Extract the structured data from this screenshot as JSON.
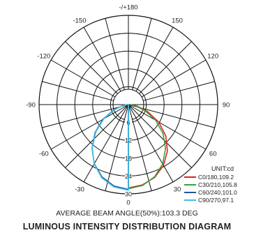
{
  "chart_data": {
    "type": "polar",
    "title": "LUMINOUS INTENSITY DISTRIBUTION DIAGRAM",
    "annotation": "AVERAGE BEAM ANGLE(50%):103.3 DEG",
    "unit_label": "UNIT:cd",
    "angle_labels": [
      {
        "angle": 180,
        "text": "-/+180"
      },
      {
        "angle": -150,
        "text": "-150"
      },
      {
        "angle": 150,
        "text": "150"
      },
      {
        "angle": -120,
        "text": "-120"
      },
      {
        "angle": 120,
        "text": "120"
      },
      {
        "angle": -90,
        "text": "-90"
      },
      {
        "angle": 90,
        "text": "90"
      },
      {
        "angle": -60,
        "text": "-60"
      },
      {
        "angle": 60,
        "text": "60"
      },
      {
        "angle": -30,
        "text": "-30"
      },
      {
        "angle": 30,
        "text": "30"
      },
      {
        "angle": 0,
        "text": "0"
      }
    ],
    "radial_ticks": [
      6,
      12,
      18,
      24,
      30
    ],
    "radial_max": 30,
    "spoke_step_deg": 15,
    "series": [
      {
        "name": "C0/180,109.2",
        "color": "#e02020",
        "points": [
          [
            0,
            28.0
          ],
          [
            10,
            27.4
          ],
          [
            20,
            26.0
          ],
          [
            30,
            23.6
          ],
          [
            40,
            20.4
          ],
          [
            50,
            16.4
          ],
          [
            60,
            11.8
          ],
          [
            70,
            6.8
          ],
          [
            80,
            3.0
          ],
          [
            90,
            0.8
          ],
          [
            100,
            0.2
          ]
        ]
      },
      {
        "name": "C30/210,105.8",
        "color": "#3aa23a",
        "points": [
          [
            0,
            28.3
          ],
          [
            10,
            27.6
          ],
          [
            20,
            25.8
          ],
          [
            30,
            23.0
          ],
          [
            40,
            19.4
          ],
          [
            50,
            15.2
          ],
          [
            60,
            10.6
          ],
          [
            70,
            5.9
          ],
          [
            80,
            2.5
          ],
          [
            90,
            0.6
          ],
          [
            100,
            0.2
          ]
        ]
      },
      {
        "name": "C60/240,101.0",
        "color": "#2255a0",
        "points": [
          [
            0,
            28.5
          ],
          [
            -10,
            27.8
          ],
          [
            -20,
            25.9
          ],
          [
            -30,
            22.9
          ],
          [
            -40,
            19.0
          ],
          [
            -50,
            14.6
          ],
          [
            -60,
            9.9
          ],
          [
            -70,
            5.2
          ],
          [
            -80,
            2.0
          ],
          [
            -90,
            0.5
          ],
          [
            -100,
            0.2
          ]
        ]
      },
      {
        "name": "C90/270,97.1",
        "color": "#40c0e8",
        "points": [
          [
            0,
            28.8
          ],
          [
            -10,
            28.1
          ],
          [
            -20,
            26.2
          ],
          [
            -30,
            23.0
          ],
          [
            -40,
            18.9
          ],
          [
            -50,
            14.3
          ],
          [
            -60,
            9.5
          ],
          [
            -70,
            4.8
          ],
          [
            -80,
            1.8
          ],
          [
            -90,
            0.4
          ],
          [
            -100,
            0.2
          ]
        ]
      }
    ]
  }
}
